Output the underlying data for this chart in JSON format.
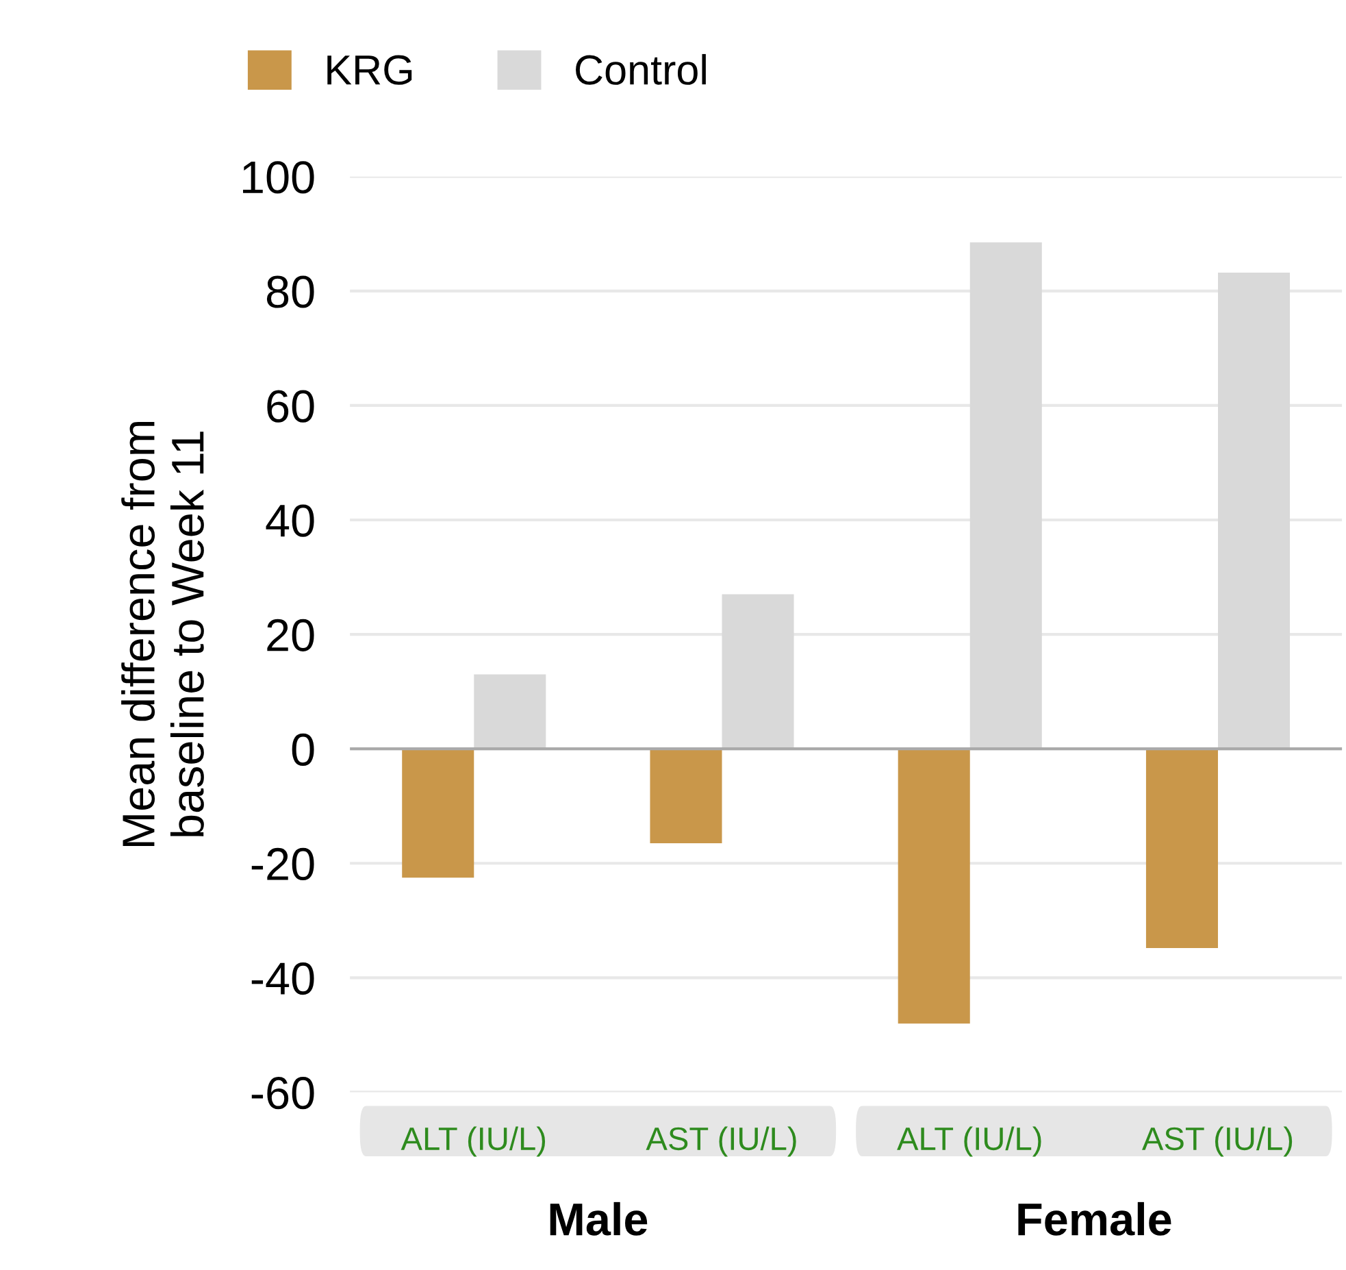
{
  "chart_data": {
    "type": "bar",
    "ylabel": "Mean difference from\nbaseline to Week 11",
    "categories": [
      "ALT (IU/L)",
      "AST (IU/L)",
      "ALT (IU/L)",
      "AST (IU/L)"
    ],
    "series": [
      {
        "name": "KRG",
        "color": "#c9974a",
        "values": [
          -22.5,
          -16.5,
          -48,
          -34.8
        ]
      },
      {
        "name": "Control",
        "color": "#d9d9d9",
        "values": [
          13,
          27,
          88.5,
          83.2
        ]
      }
    ],
    "ylim": [
      -60,
      100
    ],
    "yticks": [
      {
        "value": -60,
        "label": "-60"
      },
      {
        "value": -40,
        "label": "-40"
      },
      {
        "value": -20,
        "label": "-20"
      },
      0,
      20,
      40,
      60,
      80,
      100
    ],
    "grid": "y",
    "legend": "top left",
    "annotations": [
      "Male",
      "Female"
    ]
  }
}
